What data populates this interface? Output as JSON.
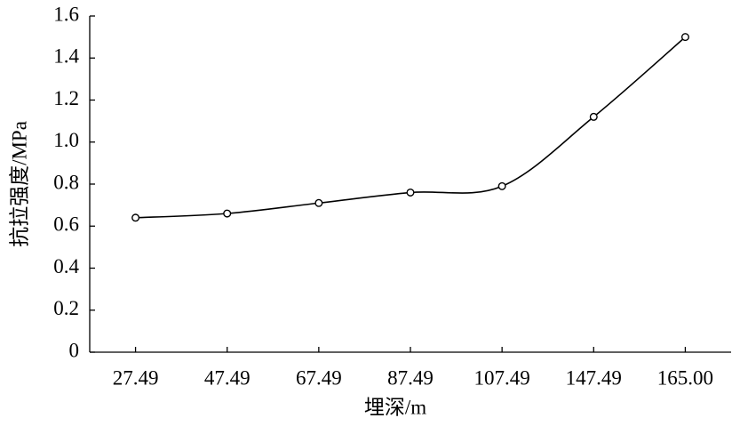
{
  "chart_data": {
    "type": "line",
    "x_label": "埋深/m",
    "y_label": "抗拉强度/MPa",
    "categories": [
      "27.49",
      "47.49",
      "67.49",
      "87.49",
      "107.49",
      "147.49",
      "165.00"
    ],
    "values": [
      0.64,
      0.66,
      0.71,
      0.76,
      0.79,
      1.12,
      1.5
    ],
    "color": "#000000",
    "smooth": true,
    "markers": true,
    "ylim": [
      0,
      1.6
    ],
    "yticks": [
      0,
      0.2,
      0.4,
      0.6,
      0.8,
      {
        "value": 1.0,
        "label": "1.0"
      },
      1.2,
      1.4,
      1.6
    ]
  }
}
